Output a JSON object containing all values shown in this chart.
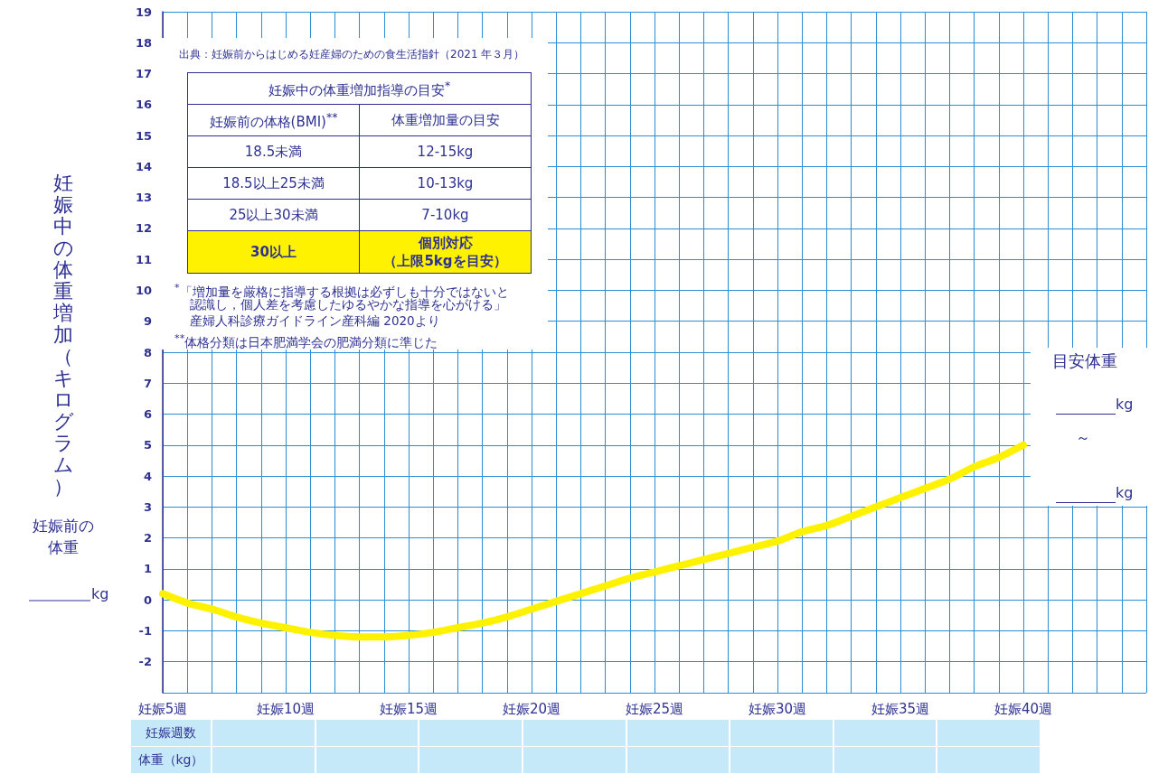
{
  "chart_data": {
    "type": "line",
    "ylabel": "妊娠中の体重増加（キログラム）",
    "categories": [
      "妊娠5週",
      null,
      null,
      null,
      null,
      "妊娠10週",
      null,
      null,
      null,
      null,
      "妊娠15週",
      null,
      null,
      null,
      null,
      "妊娠20週",
      null,
      null,
      null,
      null,
      "妊娠25週",
      null,
      null,
      null,
      null,
      "妊娠30週",
      null,
      null,
      null,
      null,
      "妊娠35週",
      null,
      null,
      null,
      null,
      "妊娠40週",
      null,
      null,
      null,
      null,
      null
    ],
    "series": [
      {
        "color": "#fff200",
        "values": [
          0.2,
          -0.1,
          -0.3,
          -0.55,
          -0.75,
          -0.9,
          -1.05,
          -1.15,
          -1.2,
          -1.2,
          -1.15,
          -1.05,
          -0.9,
          -0.75,
          -0.55,
          -0.3,
          -0.05,
          0.2,
          0.45,
          0.7,
          0.9,
          1.1,
          1.3,
          1.5,
          1.7,
          1.9,
          2.2,
          2.4,
          2.7,
          3.0,
          3.3,
          3.6,
          3.9,
          4.3,
          4.6,
          5.0,
          null,
          null,
          null,
          null,
          null
        ]
      }
    ],
    "ylim": [
      -3,
      19
    ],
    "yticks": [
      -2,
      -1,
      0,
      1,
      2,
      3,
      4,
      5,
      6,
      7,
      8,
      9,
      10,
      11,
      12,
      13,
      14,
      15,
      16,
      17,
      18,
      19
    ],
    "grid": true,
    "line_style": "solid",
    "annotations": [
      "出典：妊娠前からはじめる妊産婦のための食生活指針（2021 年３月）",
      "妊娠中の体重増加指導の目安$^{*}$",
      "妊娠前の体格(BMI)$^{**}$",
      "体重増加量の目安",
      "18.5未満",
      "12-15kg",
      "18.5以上25未満",
      "10-13kg",
      "25以上30未満",
      "7-10kg",
      "30以上",
      "個別対応",
      "（上限5kgを目安）",
      "$^{*}$「増加量を厳格に指導する根拠は必ずしも十分ではないと",
      "認識し，個人差を考慮したゆるやかな指導を心がける」",
      "産婦人科診療ガイドライン産科編 2020より",
      "$^{**}$体格分類は日本肥満学会の肥満分類に準じた",
      "妊娠前の",
      "体重",
      "kg",
      "目安体重",
      "kg",
      "～",
      "kg",
      "妊娠週数",
      "体重（kg）"
    ]
  }
}
